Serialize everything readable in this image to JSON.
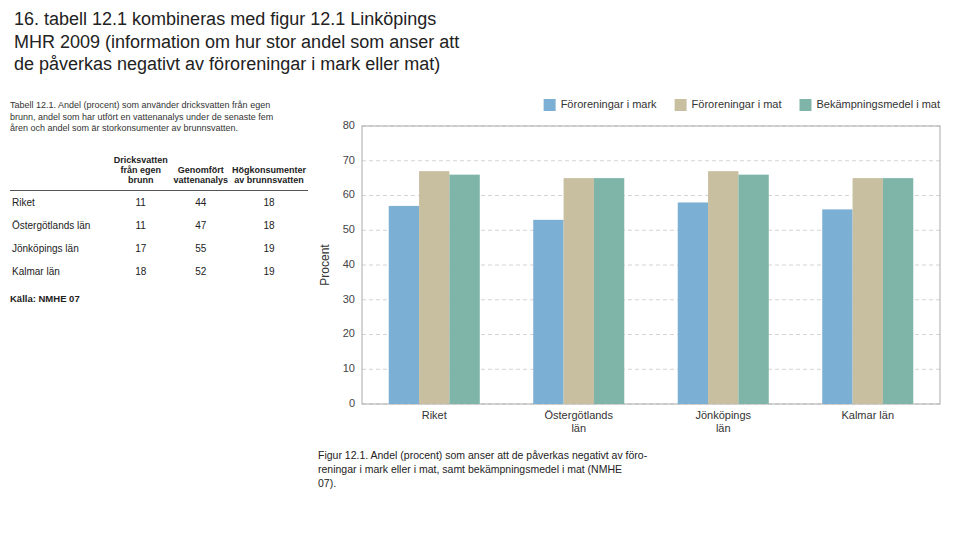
{
  "title": "16. tabell 12.1 kombineras med figur 12.1 Linköpings\nMHR 2009 (information om hur stor andel som anser att\nde påverkas negativt av föroreningar i mark eller mat)",
  "chart_data": [
    {
      "type": "table",
      "title": "Tabell 12.1. Andel (procent) som använder dricksvatten från egen\nbrunn, andel som har utfört en vattenanalys under de senaste fem\nåren och andel som är storkonsumenter av brunnsvatten.",
      "columns": [
        "Dricksvatten\nfrån egen brunn",
        "Genomfört\nvattenanalys",
        "Högkonsumenter\nav brunnsvatten"
      ],
      "rows": [
        {
          "name": "Riket",
          "values": [
            11,
            44,
            18
          ]
        },
        {
          "name": "Östergötlands län",
          "values": [
            11,
            47,
            18
          ]
        },
        {
          "name": "Jönköpings län",
          "values": [
            17,
            55,
            19
          ]
        },
        {
          "name": "Kalmar län",
          "values": [
            18,
            52,
            19
          ]
        }
      ],
      "source": "Källa: NMHE 07"
    },
    {
      "type": "bar",
      "categories": [
        "Riket",
        "Östergötlands\nlän",
        "Jönköpings\nlän",
        "Kalmar län"
      ],
      "series": [
        {
          "name": "Föroreningar i mark",
          "color": "#7bafd4",
          "values": [
            57,
            53,
            58,
            56
          ]
        },
        {
          "name": "Föroreningar i mat",
          "color": "#c8bfa0",
          "values": [
            67,
            65,
            67,
            65
          ]
        },
        {
          "name": "Bekämpningsmedel i mat",
          "color": "#7fb5a8",
          "values": [
            66,
            65,
            66,
            65
          ]
        }
      ],
      "ylabel": "Procent",
      "ylim": [
        0,
        80
      ],
      "yticks": [
        0,
        10,
        20,
        30,
        40,
        50,
        60,
        70,
        80
      ],
      "grid": true,
      "legend": "top",
      "caption": "Figur 12.1. Andel (procent) som anser att de påverkas negativt av föro-\nreningar i mark eller i mat, samt bekämpningsmedel i mat (NMHE\n07)."
    }
  ]
}
